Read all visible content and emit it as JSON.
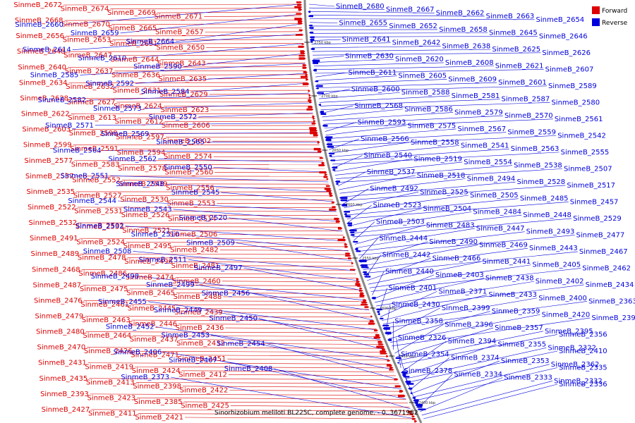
{
  "legend": {
    "forward": "Forward",
    "reverse": "Reverse"
  },
  "caption": "Sinorhizobium meliloti BL225C, complete genome. - 0..3671982",
  "colors": {
    "forward": "#dd0000",
    "reverse": "#0000dd",
    "backbone": "#888888"
  },
  "ticks": [
    "2750 kbp",
    "2700 kbp",
    "2650 kbp",
    "2600 kbp",
    "2550 kbp",
    "2500 kbp",
    "2450 kbp",
    "2400 kbp"
  ],
  "forward_labels": [
    "SinmeB_2672",
    "SinmeB_2674",
    "SinmeB_2669",
    "SinmeB_2671",
    "SinmeB_2668",
    "SinmeB_2670",
    "SinmeB_2665",
    "SinmeB_2657",
    "SinmeB_2656",
    "SinmeB_2653",
    "SinmeB_2651",
    "SinmeB_2650",
    "SinmeB_2648",
    "SinmeB_2647",
    "SinmeB_2644",
    "SinmeB_2643",
    "SinmeB_2640",
    "SinmeB_2637",
    "SinmeB_2636",
    "SinmeB_2635",
    "SinmeB_2634",
    "SinmeB_2632",
    "SinmeB_2631",
    "SinmeB_2629",
    "SinmeB_2628",
    "SinmeB_2627",
    "SinmeB_2624",
    "SinmeB_2623",
    "SinmeB_2622",
    "SinmeB_2613",
    "SinmeB_2612",
    "SinmeB_2606",
    "SinmeB_2603",
    "SinmeB_2598",
    "SinmeB_2597",
    "SinmeB_2602",
    "SinmeB_2599",
    "SinmeB_2591",
    "SinmeB_2594",
    "SinmeB_2574",
    "SinmeB_2577",
    "SinmeB_2583",
    "SinmeB_2578",
    "SinmeB_2560",
    "SinmeB_2557",
    "SinmeB_2552",
    "SinmeB_2539",
    "SinmeB_2556",
    "SinmeB_2535",
    "SinmeB_2527",
    "SinmeB_2530",
    "SinmeB_2553",
    "SinmeB_2522",
    "SinmeB_2531",
    "SinmeB_2526",
    "SinmeB_2514",
    "SinmeB_2532",
    "SinmeB_2533",
    "SinmeB_2521",
    "SinmeB_2506",
    "SinmeB_2491",
    "SinmeB_2524",
    "SinmeB_2495",
    "SinmeB_2482",
    "SinmeB_2489",
    "SinmeB_2478",
    "SinmeB_2496",
    "SinmeB_2481",
    "SinmeB_2468",
    "SinmeB_2486",
    "SinmeB_2474",
    "SinmeB_2460",
    "SinmeB_2487",
    "SinmeB_2475",
    "SinmeB_2465",
    "SinmeB_2488",
    "SinmeB_2476",
    "SinmeB_2461",
    "SinmeB_2445",
    "SinmeB_2439",
    "SinmeB_2479",
    "SinmeB_2463",
    "SinmeB_2446",
    "SinmeB_2436",
    "SinmeB_2480",
    "SinmeB_2464",
    "SinmeB_2437",
    "SinmeB_2432",
    "SinmeB_2470",
    "SinmeB_2426",
    "SinmeB_2471",
    "SinmeB_2451",
    "SinmeB_2431",
    "SinmeB_2419",
    "SinmeB_2424",
    "SinmeB_2412",
    "SinmeB_2435",
    "SinmeB_2413",
    "SinmeB_2398",
    "SinmeB_2422",
    "SinmeB_2393",
    "SinmeB_2423",
    "SinmeB_2385",
    "SinmeB_2425",
    "SinmeB_2427",
    "SinmeB_2411",
    "SinmeB_2421"
  ],
  "left_reverse_labels": [
    "SinmeB_2660",
    "SinmeB_2659",
    "SinmeB_2664",
    "SinmeB_2614",
    "SinmeB_2610",
    "SinmeB_2590",
    "SinmeB_2585",
    "SinmeB_2592",
    "SinmeB_2584",
    "SinmeB_2582",
    "SinmeB_2573",
    "SinmeB_2572",
    "SinmeB_2571",
    "SinmeB_2569",
    "SinmeB_2565",
    "SinmeB_2564",
    "SinmeB_2562",
    "SinmeB_2550",
    "SinmeB_2551",
    "SinmeB_2548",
    "SinmeB_2545",
    "SinmeB_2544",
    "SinmeB_2543",
    "SinmeB_2520",
    "SinmeB_2502",
    "SinmeB_2510",
    "SinmeB_2509",
    "SinmeB_2508",
    "SinmeB_2511",
    "SinmeB_2497",
    "SinmeB_2498",
    "SinmeB_2499",
    "SinmeB_2456",
    "SinmeB_2455",
    "SinmeB_2449",
    "SinmeB_2450",
    "SinmeB_2452",
    "SinmeB_2453",
    "SinmeB_2454",
    "SinmeB_2406",
    "SinmeB_2407",
    "SinmeB_2408",
    "SinmeB_2373"
  ],
  "right_reverse_labels": [
    "SinmeB_2680",
    "SinmeB_2667",
    "SinmeB_2662",
    "SinmeB_2663",
    "SinmeB_2654",
    "SinmeB_2655",
    "SinmeB_2652",
    "SinmeB_2658",
    "SinmeB_2645",
    "SinmeB_2646",
    "SinmeB_2641",
    "SinmeB_2642",
    "SinmeB_2638",
    "SinmeB_2625",
    "SinmeB_2626",
    "SinmeB_2630",
    "SinmeB_2620",
    "SinmeB_2608",
    "SinmeB_2621",
    "SinmeB_2607",
    "SinmeB_2611",
    "SinmeB_2605",
    "SinmeB_2609",
    "SinmeB_2601",
    "SinmeB_2589",
    "SinmeB_2600",
    "SinmeB_2588",
    "SinmeB_2581",
    "SinmeB_2587",
    "SinmeB_2580",
    "SinmeB_2568",
    "SinmeB_2586",
    "SinmeB_2579",
    "SinmeB_2570",
    "SinmeB_2561",
    "SinmeB_2593",
    "SinmeB_2575",
    "SinmeB_2567",
    "SinmeB_2559",
    "SinmeB_2542",
    "SinmeB_2566",
    "SinmeB_2558",
    "SinmeB_2541",
    "SinmeB_2563",
    "SinmeB_2555",
    "SinmeB_2540",
    "SinmeB_2519",
    "SinmeB_2554",
    "SinmeB_2538",
    "SinmeB_2507",
    "SinmeB_2537",
    "SinmeB_2518",
    "SinmeB_2494",
    "SinmeB_2528",
    "SinmeB_2517",
    "SinmeB_2492",
    "SinmeB_2525",
    "SinmeB_2505",
    "SinmeB_2485",
    "SinmeB_2457",
    "SinmeB_2523",
    "SinmeB_2504",
    "SinmeB_2484",
    "SinmeB_2448",
    "SinmeB_2529",
    "SinmeB_2503",
    "SinmeB_2483",
    "SinmeB_2447",
    "SinmeB_2493",
    "SinmeB_2477",
    "SinmeB_2444",
    "SinmeB_2490",
    "SinmeB_2469",
    "SinmeB_2443",
    "SinmeB_2467",
    "SinmeB_2442",
    "SinmeB_2466",
    "SinmeB_2441",
    "SinmeB_2405",
    "SinmeB_2462",
    "SinmeB_2440",
    "SinmeB_2403",
    "SinmeB_2438",
    "SinmeB_2402",
    "SinmeB_2434",
    "SinmeB_2401",
    "SinmeB_2371",
    "SinmeB_2433",
    "SinmeB_2400",
    "SinmeB_2363",
    "SinmeB_2430",
    "SinmeB_2399",
    "SinmeB_2359",
    "SinmeB_2420",
    "SinmeB_2397",
    "SinmeB_2358",
    "SinmeB_2396",
    "SinmeB_2357",
    "SinmeB_2395",
    "SinmeB_2356",
    "SinmeB_2326",
    "SinmeB_2394",
    "SinmeB_2355",
    "SinmeB_2322",
    "SinmeB_2410",
    "SinmeB_2354",
    "SinmeB_2374",
    "SinmeB_2353",
    "SinmeB_2362",
    "SinmeB_2335",
    "SinmeB_2378",
    "SinmeB_2334",
    "SinmeB_2333",
    "SinmeB_2332",
    "SinmeB_2336"
  ]
}
